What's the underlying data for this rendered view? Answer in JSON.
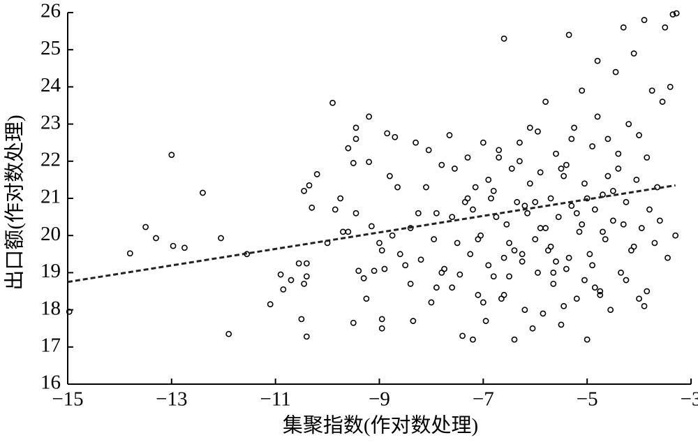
{
  "chart_data": {
    "type": "scatter",
    "xlabel": "集聚指数(作对数处理)",
    "ylabel": "出口额(作对数处理)",
    "xlim": [
      -15,
      -3
    ],
    "ylim": [
      16,
      26
    ],
    "xticks": [
      {
        "value": -15,
        "label": "−15"
      },
      {
        "value": -13,
        "label": "−13"
      },
      {
        "value": -11,
        "label": "−11"
      },
      {
        "value": -9,
        "label": "−9"
      },
      {
        "value": -7,
        "label": "−7"
      },
      {
        "value": -5,
        "label": "−5"
      },
      {
        "value": -3,
        "label": "−3"
      }
    ],
    "yticks": [
      16,
      17,
      18,
      19,
      20,
      21,
      22,
      23,
      24,
      25,
      26
    ],
    "color": "#000000",
    "series": [
      {
        "x": [
          -14.97,
          -13.8,
          -13.5,
          -13.3,
          -13.0,
          -12.97,
          -12.75,
          -12.4,
          -12.05,
          -11.9,
          -11.55,
          -11.1,
          -10.9,
          -10.85,
          -10.7,
          -10.55,
          -10.4,
          -10.4,
          -10.45,
          -10.5,
          -10.4,
          -10.45,
          -10.35,
          -10.3,
          -10.2,
          -10.0,
          -9.85,
          -9.9,
          -9.75,
          -9.7,
          -9.6,
          -9.6,
          -9.5,
          -9.45,
          -9.45,
          -9.45,
          -9.4,
          -9.5,
          -9.3,
          -9.25,
          -9.2,
          -9.2,
          -9.15,
          -9.1,
          -9.0,
          -8.95,
          -8.95,
          -8.95,
          -8.85,
          -8.8,
          -8.75,
          -8.7,
          -8.65,
          -8.6,
          -8.5,
          -8.4,
          -8.35,
          -8.3,
          -8.25,
          -8.2,
          -8.1,
          -8.05,
          -8.0,
          -7.9,
          -7.95,
          -7.9,
          -7.8,
          -7.75,
          -7.65,
          -7.6,
          -7.55,
          -7.5,
          -7.45,
          -7.4,
          -7.35,
          -7.3,
          -7.3,
          -7.25,
          -7.2,
          -7.15,
          -7.1,
          -7.05,
          -7.0,
          -6.95,
          -6.9,
          -6.85,
          -6.8,
          -6.75,
          -6.7,
          -6.65,
          -6.6,
          -6.55,
          -6.5,
          -6.45,
          -6.4,
          -6.35,
          -6.3,
          -6.25,
          -6.2,
          -6.15,
          -6.1,
          -6.05,
          -6.0,
          -5.95,
          -5.9,
          -5.85,
          -5.8,
          -5.75,
          -5.7,
          -5.65,
          -5.6,
          -5.55,
          -5.5,
          -5.45,
          -5.4,
          -5.35,
          -5.3,
          -5.25,
          -5.2,
          -5.15,
          -5.1,
          -5.05,
          -5.0,
          -4.95,
          -4.9,
          -4.85,
          -4.8,
          -4.75,
          -4.7,
          -4.65,
          -4.6,
          -4.55,
          -4.5,
          -4.45,
          -4.4,
          -4.35,
          -4.3,
          -4.25,
          -4.2,
          -4.15,
          -4.1,
          -4.05,
          -4.0,
          -3.95,
          -3.9,
          -3.85,
          -3.8,
          -3.75,
          -3.7,
          -3.65,
          -3.6,
          -3.55,
          -3.5,
          -3.45,
          -3.4,
          -3.3,
          -3.35,
          -3.28,
          -7.2,
          -6.9,
          -6.6,
          -6.3,
          -6.0,
          -5.7,
          -5.4,
          -5.1,
          -4.8,
          -4.5,
          -7.1,
          -6.7,
          -6.2,
          -5.9,
          -5.6,
          -5.3,
          -5.0,
          -4.7,
          -4.4,
          -4.1,
          -6.8,
          -6.4,
          -6.1,
          -5.8,
          -5.5,
          -5.2,
          -4.9,
          -4.6,
          -4.3,
          -4.0,
          -7.6,
          -7.0,
          -6.5,
          -5.95,
          -5.35,
          -4.85,
          -4.25,
          -3.85,
          -8.4,
          -8.9,
          -7.8,
          -6.6,
          -5.45,
          -4.75,
          -3.9,
          -6.25,
          -5.65,
          -5.05
        ],
        "y": [
          17.95,
          19.52,
          20.23,
          19.93,
          22.17,
          19.72,
          19.67,
          21.15,
          19.93,
          17.35,
          19.5,
          18.15,
          18.95,
          18.55,
          18.8,
          19.25,
          19.25,
          18.9,
          18.7,
          17.75,
          17.28,
          21.2,
          21.35,
          20.75,
          21.65,
          19.8,
          20.7,
          23.57,
          21.0,
          20.1,
          20.1,
          22.35,
          21.95,
          22.6,
          22.9,
          20.6,
          19.05,
          17.65,
          18.85,
          18.3,
          21.98,
          23.2,
          20.25,
          19.05,
          19.8,
          19.6,
          17.75,
          17.5,
          22.75,
          21.6,
          20.0,
          22.65,
          21.3,
          19.5,
          19.2,
          18.7,
          17.7,
          22.5,
          20.6,
          19.35,
          21.3,
          22.3,
          18.2,
          18.6,
          19.9,
          20.6,
          21.9,
          19.1,
          22.7,
          20.5,
          21.8,
          19.8,
          18.95,
          17.3,
          20.9,
          21.0,
          22.1,
          19.5,
          17.2,
          21.3,
          18.4,
          20.0,
          22.5,
          17.7,
          19.2,
          21.0,
          18.9,
          20.5,
          22.1,
          18.3,
          25.3,
          20.3,
          19.8,
          21.8,
          17.2,
          20.9,
          22.5,
          19.3,
          18.0,
          20.6,
          21.4,
          17.5,
          19.9,
          22.8,
          20.2,
          17.9,
          23.6,
          19.6,
          21.0,
          18.7,
          22.2,
          20.5,
          17.6,
          21.6,
          19.1,
          25.4,
          20.8,
          22.9,
          18.3,
          20.1,
          23.9,
          21.4,
          17.2,
          19.5,
          22.4,
          20.7,
          24.7,
          18.5,
          21.1,
          19.9,
          22.6,
          18.0,
          20.4,
          24.4,
          21.8,
          19.0,
          25.6,
          20.9,
          23.0,
          19.6,
          24.9,
          21.5,
          18.3,
          20.2,
          25.8,
          22.1,
          20.7,
          23.9,
          19.8,
          21.3,
          20.4,
          23.6,
          25.6,
          19.4,
          24.0,
          20.0,
          25.95,
          25.98,
          20.7,
          21.5,
          19.4,
          22.0,
          20.9,
          19.7,
          21.9,
          20.3,
          23.2,
          21.2,
          19.9,
          22.3,
          20.8,
          21.7,
          19.3,
          22.6,
          21.0,
          20.1,
          22.2,
          19.7,
          21.2,
          19.6,
          22.9,
          20.2,
          21.8,
          20.6,
          19.2,
          21.6,
          20.3,
          22.7,
          18.6,
          18.2,
          18.9,
          19.0,
          19.4,
          18.6,
          18.8,
          18.5,
          20.2,
          19.1,
          19.0,
          18.4,
          18.1,
          18.4,
          18.1,
          19.5,
          19.0,
          18.8
        ]
      }
    ],
    "trend_line": {
      "x": [
        -15,
        -3.3
      ],
      "y": [
        18.75,
        21.35
      ]
    }
  }
}
